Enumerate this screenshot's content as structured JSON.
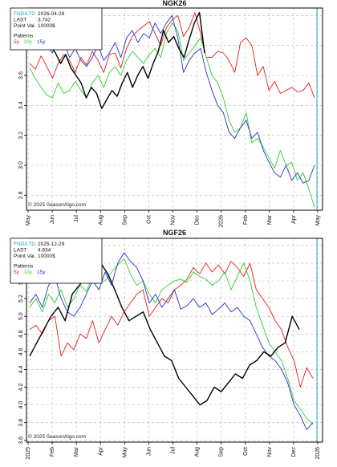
{
  "chart_data": [
    {
      "type": "line",
      "title": "NGK26",
      "ylim": [
        2.7,
        4.05
      ],
      "yticks": [
        "2.8",
        "3.0",
        "3.2",
        "3.4",
        "3.6",
        "3.8",
        "4.0"
      ],
      "months": [
        "May",
        "Jun",
        "Jul",
        "Aug",
        "Sep",
        "Oct",
        "Nov",
        "Dec",
        "2026",
        "Feb",
        "Mar",
        "Apr",
        "May"
      ],
      "info": {
        "lines": [
          [
            "FND/LTD",
            "2026-04-28"
          ],
          [
            "LAST",
            "3.742"
          ],
          [
            "Point Val.",
            "10000$"
          ]
        ],
        "patterns_label": "Patterns",
        "patterns": [
          "5y",
          "10y",
          "15y"
        ]
      },
      "copyright": "© 2025 SeasonAlgo.com",
      "series": [
        {
          "name": "5y",
          "color": "#e8191e",
          "values": [
            3.68,
            3.64,
            3.73,
            3.66,
            3.58,
            3.68,
            3.74,
            3.7,
            3.62,
            3.72,
            3.67,
            3.76,
            3.7,
            3.62,
            3.74,
            3.75,
            3.65,
            3.78,
            3.86,
            3.9,
            3.93,
            3.96,
            3.88,
            3.8,
            3.92,
            3.97,
            4.0,
            3.86,
            3.92,
            4.02,
            3.88,
            3.72,
            3.72,
            3.76,
            3.75,
            3.7,
            3.62,
            3.82,
            3.85,
            3.8,
            3.6,
            3.66,
            3.5,
            3.56,
            3.48,
            3.5,
            3.52,
            3.49,
            3.5,
            3.55,
            3.45
          ]
        },
        {
          "name": "10y",
          "color": "#2fcf2f",
          "values": [
            3.65,
            3.58,
            3.52,
            3.47,
            3.45,
            3.55,
            3.48,
            3.5,
            3.56,
            3.5,
            3.45,
            3.55,
            3.6,
            3.52,
            3.62,
            3.66,
            3.6,
            3.7,
            3.76,
            3.72,
            3.68,
            3.74,
            3.78,
            3.72,
            3.88,
            3.95,
            3.9,
            3.7,
            3.75,
            3.8,
            3.85,
            3.72,
            3.6,
            3.55,
            3.45,
            3.3,
            3.22,
            3.25,
            3.35,
            3.15,
            3.18,
            3.12,
            3.05,
            2.98,
            3.1,
            3.0,
            3.02,
            2.9,
            2.95,
            2.84,
            2.72
          ]
        },
        {
          "name": "15y",
          "color": "#2233cc",
          "values": [
            3.9,
            3.85,
            3.82,
            3.8,
            3.75,
            3.88,
            3.82,
            3.72,
            3.78,
            3.7,
            3.66,
            3.72,
            3.8,
            3.7,
            3.75,
            3.82,
            3.72,
            3.85,
            3.9,
            3.82,
            3.88,
            3.85,
            3.95,
            3.88,
            3.95,
            4.0,
            3.85,
            3.62,
            3.7,
            3.75,
            3.78,
            3.62,
            3.5,
            3.4,
            3.35,
            3.22,
            3.18,
            3.25,
            3.3,
            3.18,
            3.22,
            3.1,
            3.02,
            2.95,
            2.92,
            3.0,
            2.9,
            2.95,
            2.88,
            2.9,
            3.0
          ]
        },
        {
          "name": "NGK26",
          "color": "#000000",
          "values": [
            3.82,
            3.78,
            3.88,
            3.82,
            3.8,
            3.75,
            3.68,
            3.74,
            3.65,
            3.6,
            3.55,
            3.45,
            3.52,
            3.48,
            3.38,
            3.44,
            3.5,
            3.46,
            3.55,
            3.62,
            3.52,
            3.6,
            3.66,
            3.58,
            3.68,
            3.76,
            3.9,
            3.82,
            3.86,
            3.78,
            3.72,
            3.84,
            3.95,
            4.02,
            3.75
          ]
        }
      ]
    },
    {
      "type": "line",
      "title": "NGF26",
      "ylim": [
        3.58,
        5.88
      ],
      "yticks": [
        "3.6",
        "3.8",
        "4.0",
        "4.2",
        "4.4",
        "4.6",
        "4.8",
        "5.0",
        "5.2",
        "5.4",
        "5.6",
        "5.8"
      ],
      "months": [
        "2025",
        "Feb",
        "Mar",
        "Apr",
        "May",
        "Jun",
        "Jul",
        "Aug",
        "Sep",
        "Oct",
        "Nov",
        "Dec",
        "2026"
      ],
      "info": {
        "lines": [
          [
            "FND/LTD",
            "2025-12-29"
          ],
          [
            "LAST",
            "4.834"
          ],
          [
            "Point Val.",
            "10000$"
          ]
        ],
        "patterns_label": "Patterns",
        "patterns": [
          "5y",
          "10y",
          "15y"
        ]
      },
      "copyright": "© 2025 SeasonAlgo.com",
      "series": [
        {
          "name": "5y",
          "color": "#e8191e",
          "values": [
            4.85,
            4.9,
            4.8,
            4.95,
            5.0,
            4.55,
            4.7,
            4.62,
            4.8,
            4.75,
            4.95,
            4.7,
            4.85,
            5.0,
            4.9,
            5.05,
            5.15,
            5.25,
            5.3,
            5.0,
            5.1,
            5.2,
            5.15,
            5.3,
            5.35,
            5.42,
            5.55,
            5.48,
            5.6,
            5.5,
            5.58,
            5.48,
            5.62,
            5.55,
            5.45,
            5.6,
            5.3,
            5.2,
            5.1,
            4.95,
            4.85,
            4.65,
            4.5,
            4.2,
            4.42,
            4.3
          ]
        },
        {
          "name": "10y",
          "color": "#2fcf2f",
          "values": [
            5.1,
            5.2,
            5.05,
            5.25,
            5.15,
            5.3,
            5.1,
            5.2,
            5.35,
            5.28,
            5.45,
            5.38,
            5.4,
            5.5,
            5.58,
            5.65,
            5.48,
            5.35,
            5.4,
            5.25,
            5.15,
            5.3,
            5.35,
            5.4,
            5.42,
            5.38,
            5.5,
            5.45,
            5.42,
            5.35,
            5.4,
            5.5,
            5.3,
            5.45,
            5.6,
            5.4,
            5.1,
            4.9,
            4.7,
            4.6,
            4.5,
            4.3,
            4.05,
            3.95,
            3.85,
            3.78
          ]
        },
        {
          "name": "15y",
          "color": "#2233cc",
          "values": [
            5.15,
            5.25,
            5.1,
            5.35,
            5.45,
            5.2,
            5.05,
            5.0,
            5.1,
            5.25,
            5.4,
            5.3,
            5.5,
            5.35,
            5.6,
            5.72,
            5.62,
            5.55,
            5.4,
            5.15,
            5.25,
            5.1,
            5.2,
            5.3,
            5.08,
            5.12,
            5.2,
            5.1,
            5.15,
            5.02,
            5.08,
            5.15,
            5.05,
            5.1,
            5.0,
            4.95,
            4.8,
            4.65,
            4.55,
            4.5,
            4.4,
            4.25,
            4.0,
            3.88,
            3.72,
            3.8
          ]
        },
        {
          "name": "NGF26",
          "color": "#000000",
          "values": [
            4.55,
            4.7,
            4.85,
            5.0,
            5.1,
            4.95,
            5.25,
            5.35,
            5.45,
            5.55,
            5.6,
            5.48,
            5.3,
            5.1,
            4.95,
            5.0,
            5.05,
            4.85,
            4.7,
            4.55,
            4.5,
            4.3,
            4.2,
            4.1,
            4.0,
            4.05,
            4.2,
            4.15,
            4.25,
            4.35,
            4.3,
            4.45,
            4.5,
            4.6,
            4.55,
            4.65,
            4.7,
            5.0,
            4.85
          ]
        }
      ]
    }
  ]
}
